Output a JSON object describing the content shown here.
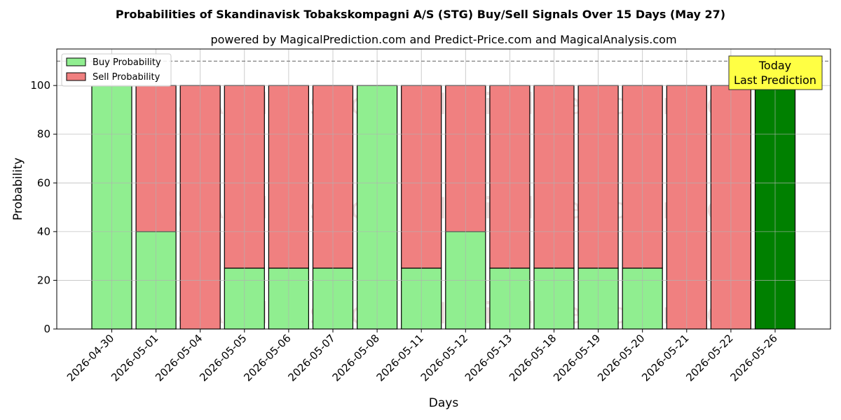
{
  "chart_data": {
    "type": "bar",
    "title": "Probabilities of Skandinavisk Tobakskompagni A/S (STG) Buy/Sell Signals Over 15 Days (May 27)",
    "subtitle": "powered by MagicalPrediction.com and Predict-Price.com and MagicalAnalysis.com",
    "xlabel": "Days",
    "ylabel": "Probability",
    "ylim": [
      0,
      115
    ],
    "yticks": [
      0,
      20,
      40,
      60,
      80,
      100
    ],
    "grid": true,
    "stacked": true,
    "categories": [
      "2026-04-30",
      "2026-05-01",
      "2026-05-04",
      "2026-05-05",
      "2026-05-06",
      "2026-05-07",
      "2026-05-08",
      "2026-05-11",
      "2026-05-12",
      "2026-05-13",
      "2026-05-18",
      "2026-05-19",
      "2026-05-20",
      "2026-05-21",
      "2026-05-22",
      "2026-05-26"
    ],
    "series": [
      {
        "name": "Buy Probability",
        "color": "#90ee90",
        "values": [
          100,
          40,
          0,
          25,
          25,
          25,
          100,
          25,
          40,
          25,
          25,
          25,
          25,
          0,
          0,
          100
        ]
      },
      {
        "name": "Sell Probability",
        "color": "#f08080",
        "values": [
          0,
          60,
          100,
          75,
          75,
          75,
          0,
          75,
          60,
          75,
          75,
          75,
          75,
          100,
          100,
          0
        ]
      }
    ],
    "highlight": {
      "index": 15,
      "color": "#008000"
    },
    "reference_line": {
      "y": 110,
      "style": "dashed",
      "color": "#808080"
    },
    "annotation": {
      "lines": [
        "Today",
        "Last Prediction"
      ],
      "background": "#ffff44"
    },
    "legend": {
      "placement": "top-left"
    },
    "watermarks": [
      "MagicalAnalysis.com",
      "MagicalPrediction.com"
    ]
  }
}
